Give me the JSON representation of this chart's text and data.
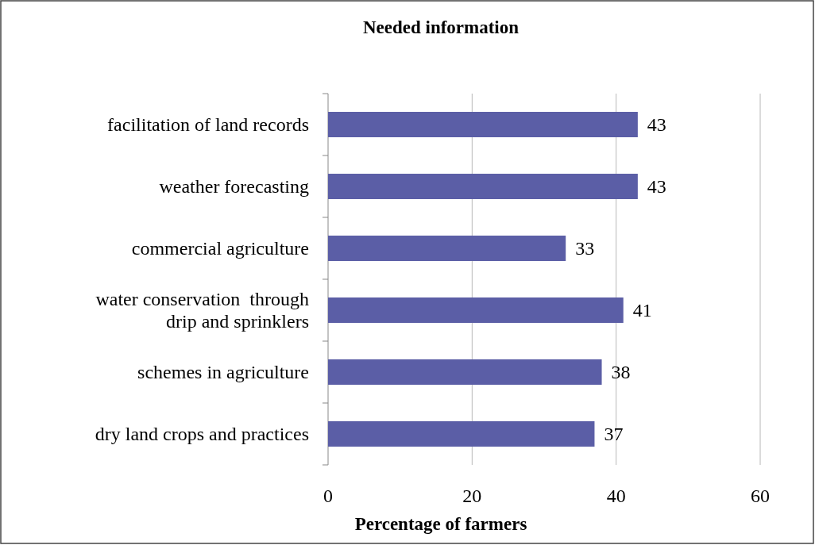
{
  "chart_data": {
    "type": "bar",
    "orientation": "horizontal",
    "title": "Needed information",
    "xlabel": "Percentage of farmers",
    "categories": [
      "facilitation of land records",
      "weather forecasting",
      "commercial agriculture",
      "water conservation  through\ndrip and sprinklers",
      "schemes in agriculture",
      "dry land crops and practices"
    ],
    "values": [
      43,
      43,
      33,
      41,
      38,
      37
    ],
    "color": "#5b5ea6",
    "xlim": [
      0,
      60
    ],
    "xticks": [
      0,
      20,
      40,
      60
    ],
    "grid": "x",
    "data_labels": true
  }
}
